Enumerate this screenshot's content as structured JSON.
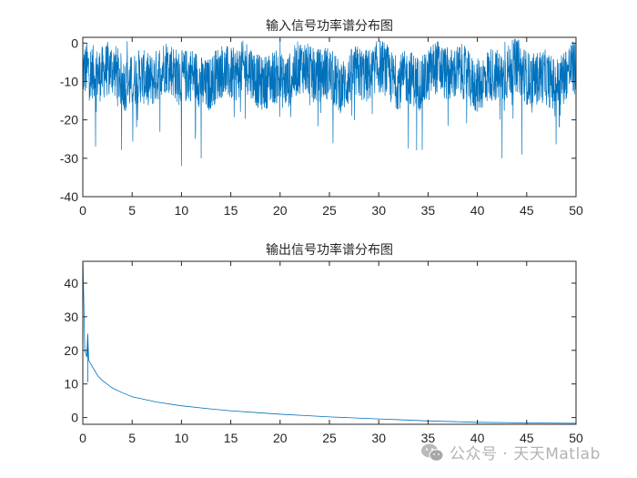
{
  "figure": {
    "background": "#ffffff",
    "line_color": "#0072BD",
    "axis_color": "#262626"
  },
  "watermark": {
    "icon": "wechat-icon",
    "text": "公众号 · 天天Matlab"
  },
  "chart_data": [
    {
      "type": "line",
      "title": "输入信号功率谱分布图",
      "xlabel": "",
      "ylabel": "",
      "xlim": [
        0,
        50
      ],
      "ylim": [
        -40,
        1.5
      ],
      "xticks": [
        0,
        5,
        10,
        15,
        20,
        25,
        30,
        35,
        40,
        45,
        50
      ],
      "yticks": [
        0,
        -10,
        -20,
        -30,
        -40
      ],
      "grid": false,
      "legend": null,
      "series": [
        {
          "name": "input_psd_db",
          "description": "Dense noisy power spectrum; main band roughly between -2 and -15 dB across 0-50, occasional dips to about -20 to -32 dB",
          "band_upper": -2,
          "band_lower": -15,
          "notable_minima": [
            {
              "x": 1.3,
              "y": -27
            },
            {
              "x": 10.0,
              "y": -32
            },
            {
              "x": 12.0,
              "y": -30
            },
            {
              "x": 33.0,
              "y": -27.5
            },
            {
              "x": 42.5,
              "y": -30
            },
            {
              "x": 44.5,
              "y": -29
            }
          ],
          "notable_maxima": [
            {
              "x": 4.5,
              "y": 0.5
            },
            {
              "x": 20.0,
              "y": 0.5
            },
            {
              "x": 42.8,
              "y": 0.3
            }
          ]
        }
      ]
    },
    {
      "type": "line",
      "title": "输出信号功率谱分布图",
      "xlabel": "",
      "ylabel": "",
      "xlim": [
        0,
        50
      ],
      "ylim": [
        -2,
        46.5
      ],
      "xticks": [
        0,
        5,
        10,
        15,
        20,
        25,
        30,
        35,
        40,
        45,
        50
      ],
      "yticks": [
        0,
        10,
        20,
        30,
        40
      ],
      "grid": false,
      "legend": null,
      "series": [
        {
          "name": "output_psd",
          "description": "Sharp spike near x=0 (up to ~46), spikes ~25 near x=0.5, then smooth decay toward 0",
          "x": [
            0.02,
            0.2,
            0.4,
            0.5,
            0.6,
            0.8,
            1,
            1.5,
            2,
            3,
            4,
            5,
            7.5,
            10,
            12.5,
            15,
            17.5,
            20,
            22.5,
            25,
            27.5,
            30,
            32.5,
            35,
            37.5,
            40,
            45,
            50
          ],
          "y": [
            46,
            20,
            18,
            25,
            17,
            16,
            15,
            12.5,
            11,
            8.8,
            7.4,
            6.2,
            4.6,
            3.5,
            2.7,
            2.0,
            1.5,
            1.0,
            0.6,
            0.2,
            -0.1,
            -0.4,
            -0.7,
            -1.0,
            -1.2,
            -1.4,
            -1.6,
            -1.7
          ]
        }
      ]
    }
  ]
}
